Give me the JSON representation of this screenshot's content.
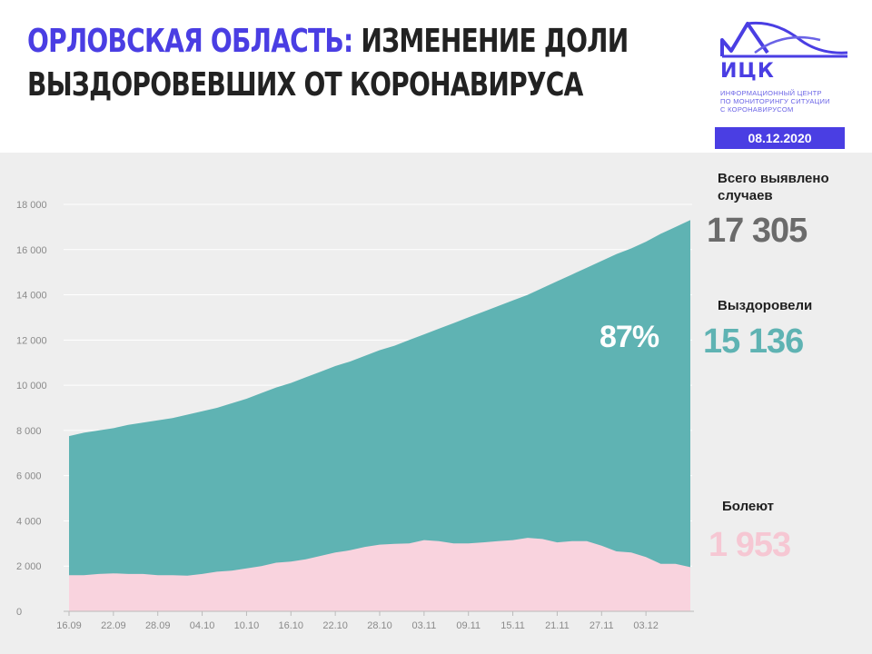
{
  "header": {
    "title_accent": "ОРЛОВСКАЯ ОБЛАСТЬ:",
    "title_line1": "ИЗМЕНЕНИЕ ДОЛИ",
    "title_line2": "ВЫЗДОРОВЕВШИХ ОТ КОРОНАВИРУСА",
    "logo_abbr": "ИЦК",
    "logo_sub": [
      "ИНФОРМАЦИОННЫЙ ЦЕНТР",
      "ПО МОНИТОРИНГУ СИТУАЦИИ",
      "С КОРОНАВИРУСОМ"
    ],
    "date": "08.12.2020"
  },
  "stats": {
    "total_label_line1": "Всего выявлено",
    "total_label_line2": "случаев",
    "total_value": "17 305",
    "recovered_label": "Выздоровели",
    "recovered_value": "15 136",
    "sick_label": "Болеют",
    "sick_value": "1 953",
    "recovered_percent": "87%"
  },
  "colors": {
    "accent": "#4a3ee3",
    "total_value": "#6b6b6b",
    "recovered": "#5fb3b3",
    "sick": "#f9d3de",
    "sick_value": "#f6c7d3",
    "background_panel": "#eeeeee"
  },
  "chart_data": {
    "type": "area",
    "ylim": [
      0,
      18000
    ],
    "yticks": [
      0,
      2000,
      4000,
      6000,
      8000,
      10000,
      12000,
      14000,
      16000,
      18000
    ],
    "ytick_labels": [
      "0",
      "2 000",
      "4 000",
      "6 000",
      "8 000",
      "10 000",
      "12 000",
      "14 000",
      "16 000",
      "18 000"
    ],
    "xtick_labels": [
      "16.09",
      "22.09",
      "28.09",
      "04.10",
      "10.10",
      "16.10",
      "22.10",
      "28.10",
      "03.11",
      "09.11",
      "15.11",
      "21.11",
      "27.11",
      "03.12"
    ],
    "x": [
      "16.09",
      "18.09",
      "20.09",
      "22.09",
      "24.09",
      "26.09",
      "28.09",
      "30.09",
      "02.10",
      "04.10",
      "06.10",
      "08.10",
      "10.10",
      "12.10",
      "14.10",
      "16.10",
      "18.10",
      "20.10",
      "22.10",
      "24.10",
      "26.10",
      "28.10",
      "30.10",
      "01.11",
      "03.11",
      "05.11",
      "07.11",
      "09.11",
      "11.11",
      "13.11",
      "15.11",
      "17.11",
      "19.11",
      "21.11",
      "23.11",
      "25.11",
      "27.11",
      "29.11",
      "01.12",
      "03.12",
      "05.12",
      "07.12",
      "08.12"
    ],
    "series": [
      {
        "name": "Болеют",
        "values": [
          1600,
          1600,
          1650,
          1680,
          1650,
          1650,
          1600,
          1600,
          1580,
          1650,
          1750,
          1800,
          1900,
          2000,
          2150,
          2200,
          2300,
          2450,
          2600,
          2700,
          2850,
          2950,
          2980,
          3000,
          3150,
          3100,
          3000,
          3000,
          3050,
          3100,
          3150,
          3250,
          3200,
          3050,
          3100,
          3100,
          2900,
          2650,
          2600,
          2400,
          2100,
          2100,
          1953
        ]
      },
      {
        "name": "Всего выявлено случаев",
        "values": [
          7750,
          7900,
          8000,
          8100,
          8250,
          8350,
          8450,
          8550,
          8700,
          8850,
          9000,
          9200,
          9400,
          9650,
          9900,
          10100,
          10350,
          10600,
          10850,
          11050,
          11300,
          11550,
          11750,
          12000,
          12250,
          12500,
          12750,
          13000,
          13250,
          13500,
          13750,
          14000,
          14300,
          14600,
          14900,
          15200,
          15500,
          15800,
          16050,
          16350,
          16700,
          17000,
          17305
        ]
      }
    ]
  }
}
